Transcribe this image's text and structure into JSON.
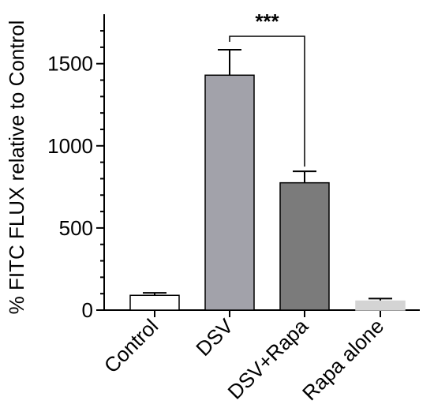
{
  "chart_data": {
    "type": "bar",
    "title": "",
    "xlabel": "",
    "ylabel": "% FITC FLUX relative to Control",
    "ylim": [
      0,
      1700
    ],
    "yticks": [
      0,
      500,
      1000,
      1500
    ],
    "ytick_labels": [
      "0",
      "500",
      "1000",
      "1500"
    ],
    "categories": [
      "Control",
      "DSV",
      "DSV+Rapa",
      "Rapa alone"
    ],
    "values": [
      90,
      1430,
      775,
      55
    ],
    "errors": [
      15,
      155,
      70,
      15
    ],
    "bar_colors": [
      "#ffffff",
      "#a2a2aa",
      "#7b7b7b",
      "#d4d4d4"
    ],
    "bar_edge_colors": [
      "#000000",
      "#000000",
      "#000000",
      "#d4d4d4"
    ],
    "annotations": [
      {
        "text": "***",
        "between": [
          "DSV",
          "DSV+Rapa"
        ]
      }
    ]
  }
}
